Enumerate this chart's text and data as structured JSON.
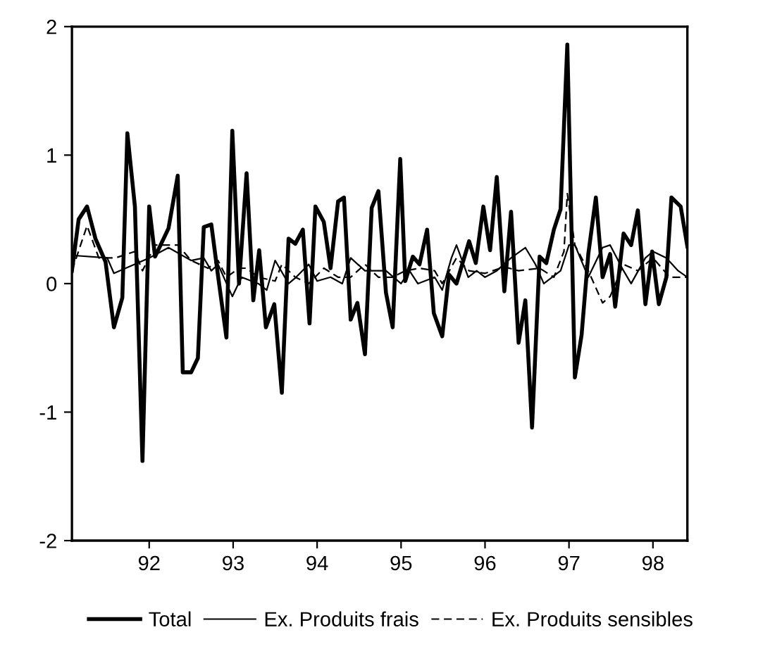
{
  "chart_data": {
    "type": "line",
    "xlim": [
      91.08,
      98.41
    ],
    "ylim": [
      -2,
      2
    ],
    "xticks": [
      {
        "value": 92,
        "label": "92"
      },
      {
        "value": 93,
        "label": "93"
      },
      {
        "value": 94,
        "label": "94"
      },
      {
        "value": 95,
        "label": "95"
      },
      {
        "value": 96,
        "label": "96"
      },
      {
        "value": 97,
        "label": "97"
      },
      {
        "value": 98,
        "label": "98"
      }
    ],
    "yticks": [
      -2,
      -1,
      0,
      1,
      2
    ],
    "grid": false,
    "legend": "bottom",
    "marker": "none",
    "series": [
      {
        "name": "Total",
        "color": "#000000",
        "line_style": "solid",
        "x": [
          91.08,
          91.16,
          91.26,
          91.36,
          91.48,
          91.58,
          91.68,
          91.74,
          91.83,
          91.92,
          92.0,
          92.07,
          92.23,
          92.34,
          92.4,
          92.5,
          92.58,
          92.65,
          92.74,
          92.82,
          92.92,
          92.99,
          93.07,
          93.16,
          93.24,
          93.31,
          93.39,
          93.49,
          93.58,
          93.66,
          93.74,
          93.83,
          93.91,
          93.98,
          94.08,
          94.16,
          94.25,
          94.32,
          94.4,
          94.48,
          94.57,
          94.65,
          94.73,
          94.82,
          94.9,
          94.99,
          95.05,
          95.14,
          95.22,
          95.31,
          95.39,
          95.49,
          95.57,
          95.66,
          95.81,
          95.89,
          95.98,
          96.06,
          96.14,
          96.23,
          96.31,
          96.4,
          96.48,
          96.56,
          96.65,
          96.73,
          96.82,
          96.9,
          96.98,
          97.07,
          97.15,
          97.23,
          97.32,
          97.4,
          97.49,
          97.55,
          97.65,
          97.74,
          97.82,
          97.91,
          97.99,
          98.07,
          98.16,
          98.22,
          98.33,
          98.41
        ],
        "values": [
          0.1,
          0.5,
          0.6,
          0.35,
          0.17,
          -0.34,
          -0.11,
          1.17,
          0.6,
          -1.38,
          0.6,
          0.21,
          0.43,
          0.84,
          -0.69,
          -0.69,
          -0.58,
          0.44,
          0.46,
          0.06,
          -0.42,
          1.19,
          0.0,
          0.86,
          -0.13,
          0.26,
          -0.34,
          -0.16,
          -0.85,
          0.35,
          0.31,
          0.42,
          -0.31,
          0.6,
          0.48,
          0.12,
          0.64,
          0.67,
          -0.28,
          -0.15,
          -0.55,
          0.59,
          0.72,
          -0.07,
          -0.34,
          0.97,
          0.02,
          0.21,
          0.15,
          0.42,
          -0.23,
          -0.41,
          0.07,
          0.0,
          0.33,
          0.16,
          0.6,
          0.26,
          0.83,
          -0.06,
          0.56,
          -0.46,
          -0.13,
          -1.12,
          0.21,
          0.16,
          0.42,
          0.58,
          1.86,
          -0.73,
          -0.4,
          0.23,
          0.67,
          0.05,
          0.23,
          -0.18,
          0.39,
          0.3,
          0.57,
          -0.16,
          0.25,
          -0.16,
          0.05,
          0.67,
          0.6,
          0.29
        ]
      },
      {
        "name": "Ex. Produits frais",
        "color": "#000000",
        "line_style": "solid",
        "x": [
          91.08,
          91.5,
          91.58,
          92.0,
          92.23,
          92.5,
          92.65,
          92.74,
          92.82,
          92.99,
          93.1,
          93.3,
          93.4,
          93.5,
          93.66,
          93.75,
          93.9,
          94.0,
          94.16,
          94.3,
          94.4,
          94.57,
          94.73,
          94.82,
          95.0,
          95.1,
          95.2,
          95.4,
          95.49,
          95.6,
          95.66,
          95.8,
          95.9,
          96.0,
          96.14,
          96.31,
          96.48,
          96.6,
          96.7,
          96.9,
          97.0,
          97.07,
          97.23,
          97.4,
          97.49,
          97.65,
          97.74,
          97.91,
          98.0,
          98.16,
          98.3,
          98.41
        ],
        "values": [
          0.22,
          0.2,
          0.08,
          0.2,
          0.28,
          0.18,
          0.2,
          0.1,
          0.15,
          -0.1,
          0.05,
          0.0,
          -0.05,
          0.18,
          0.0,
          0.05,
          0.15,
          0.02,
          0.05,
          0.0,
          0.2,
          0.1,
          0.1,
          0.1,
          0.0,
          0.1,
          0.0,
          0.05,
          -0.05,
          0.2,
          0.3,
          0.05,
          0.1,
          0.05,
          0.1,
          0.2,
          0.28,
          0.15,
          0.0,
          0.1,
          0.3,
          0.3,
          0.05,
          0.28,
          0.3,
          0.1,
          0.0,
          0.2,
          0.25,
          0.2,
          0.1,
          0.05
        ]
      },
      {
        "name": "Ex. Produits sensibles",
        "color": "#000000",
        "line_style": "dashed",
        "x": [
          91.08,
          91.26,
          91.4,
          91.6,
          91.83,
          91.92,
          92.07,
          92.34,
          92.5,
          92.7,
          92.82,
          92.92,
          93.07,
          93.16,
          93.3,
          93.5,
          93.58,
          93.74,
          93.9,
          94.08,
          94.25,
          94.4,
          94.57,
          94.73,
          94.9,
          95.05,
          95.22,
          95.4,
          95.49,
          95.66,
          95.81,
          96.0,
          96.23,
          96.4,
          96.65,
          96.82,
          96.94,
          96.98,
          97.07,
          97.23,
          97.4,
          97.49,
          97.65,
          97.82,
          98.0,
          98.2,
          98.41
        ],
        "values": [
          0.1,
          0.45,
          0.2,
          0.2,
          0.25,
          0.1,
          0.3,
          0.3,
          0.18,
          0.12,
          0.18,
          0.05,
          0.12,
          0.12,
          0.05,
          0.02,
          0.15,
          0.05,
          0.0,
          0.12,
          0.05,
          0.05,
          0.15,
          0.05,
          0.05,
          0.1,
          0.12,
          0.1,
          0.0,
          0.2,
          0.1,
          0.08,
          0.13,
          0.1,
          0.12,
          0.05,
          0.25,
          0.7,
          0.3,
          0.1,
          -0.15,
          -0.1,
          0.15,
          0.1,
          0.2,
          0.05,
          0.05
        ]
      }
    ]
  }
}
